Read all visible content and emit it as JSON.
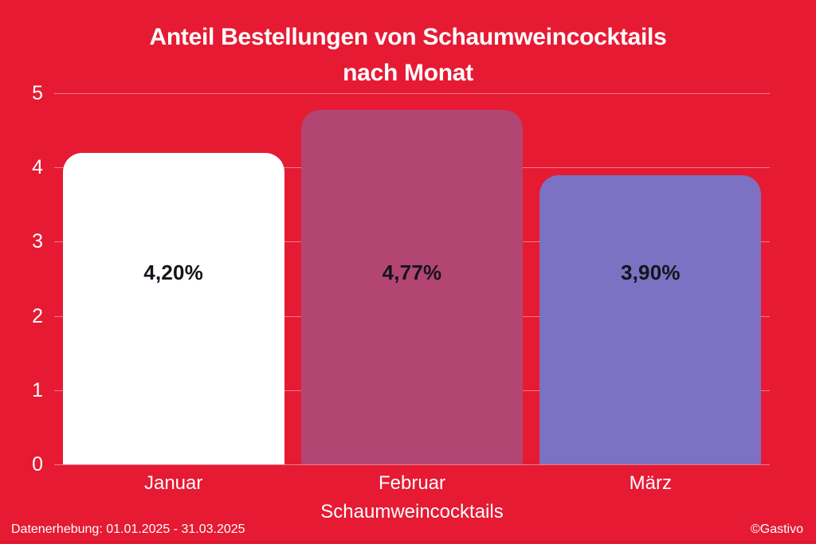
{
  "title": {
    "line1": "Anteil Bestellungen von Schaumweincocktails",
    "line2": "nach Monat"
  },
  "footer": {
    "left": "Datenerhebung: 01.01.2025 - 31.03.2025",
    "right": "©Gastivo"
  },
  "colors": {
    "background": "#E61A33",
    "gridline": "rgba(255,255,255,0.42)",
    "title_text": "#FFFFFF",
    "axis_text": "#FFFFFF",
    "value_label_text": "#14141C"
  },
  "chart_data": {
    "type": "bar",
    "title": "Anteil Bestellungen von Schaumweincocktails nach Monat",
    "categories": [
      "Januar",
      "Februar",
      "März"
    ],
    "values": [
      4.2,
      4.77,
      3.9
    ],
    "value_labels": [
      "4,20%",
      "4,77%",
      "3,90%"
    ],
    "bar_colors": [
      "#FFFFFF",
      "#B34573",
      "#7C71C2"
    ],
    "xlabel": "Schaumweincocktails",
    "ylabel": "",
    "ylim": [
      0,
      5
    ],
    "yticks": [
      0,
      1,
      2,
      3,
      4,
      5
    ],
    "grid": true,
    "legend": false,
    "unit": "percent"
  }
}
